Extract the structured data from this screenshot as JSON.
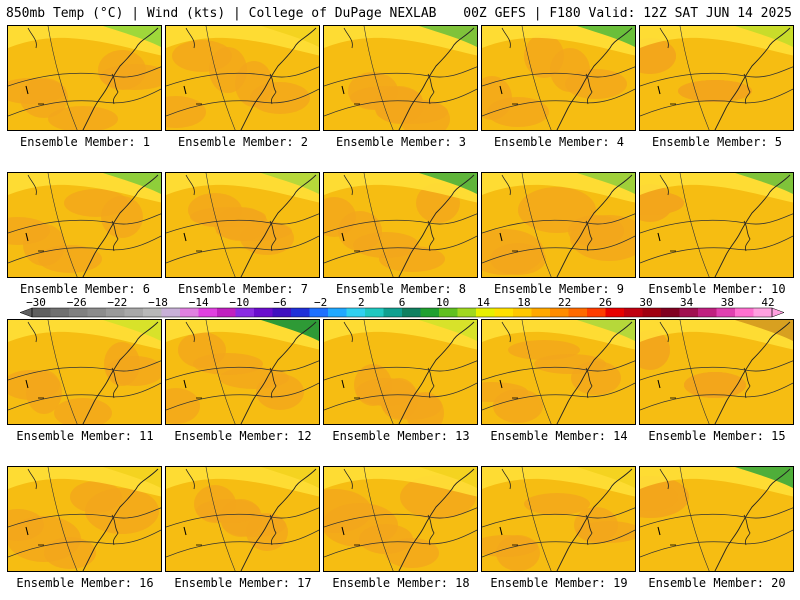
{
  "header": {
    "left": "850mb Temp (°C) | Wind (kts) | College of DuPage NEXLAB",
    "right": "00Z GEFS | F180 Valid: 12Z SAT JUN 14 2025"
  },
  "label_prefix": "Ensemble Member:",
  "members": [
    {
      "id": 1,
      "label": "Ensemble Member: 1",
      "north_tint": "#9fd83a"
    },
    {
      "id": 2,
      "label": "Ensemble Member: 2",
      "north_tint": "#f4d320"
    },
    {
      "id": 3,
      "label": "Ensemble Member: 3",
      "north_tint": "#7fc33a"
    },
    {
      "id": 4,
      "label": "Ensemble Member: 4",
      "north_tint": "#6abf3a"
    },
    {
      "id": 5,
      "label": "Ensemble Member: 5",
      "north_tint": "#c9dc2a"
    },
    {
      "id": 6,
      "label": "Ensemble Member: 6",
      "north_tint": "#8fce3a"
    },
    {
      "id": 7,
      "label": "Ensemble Member: 7",
      "north_tint": "#b6d83a"
    },
    {
      "id": 8,
      "label": "Ensemble Member: 8",
      "north_tint": "#5fb53a"
    },
    {
      "id": 9,
      "label": "Ensemble Member: 9",
      "north_tint": "#9fd03a"
    },
    {
      "id": 10,
      "label": "Ensemble Member: 10",
      "north_tint": "#7fc33a"
    },
    {
      "id": 11,
      "label": "Ensemble Member: 11",
      "north_tint": "#d8e22a"
    },
    {
      "id": 12,
      "label": "Ensemble Member: 12",
      "north_tint": "#2e9a36"
    },
    {
      "id": 13,
      "label": "Ensemble Member: 13",
      "north_tint": "#d8e22a"
    },
    {
      "id": 14,
      "label": "Ensemble Member: 14",
      "north_tint": "#b6d83a"
    },
    {
      "id": 15,
      "label": "Ensemble Member: 15",
      "north_tint": "#d8a020"
    },
    {
      "id": 16,
      "label": "Ensemble Member: 16",
      "north_tint": "#f4d320"
    },
    {
      "id": 17,
      "label": "Ensemble Member: 17",
      "north_tint": "#f4d320"
    },
    {
      "id": 18,
      "label": "Ensemble Member: 18",
      "north_tint": "#f4d320"
    },
    {
      "id": 19,
      "label": "Ensemble Member: 19",
      "north_tint": "#f4d320"
    },
    {
      "id": 20,
      "label": "Ensemble Member: 20",
      "north_tint": "#4fae3a"
    }
  ],
  "colorbar": {
    "labels": [
      "−30",
      "−26",
      "−22",
      "−18",
      "−14",
      "−10",
      "−6",
      "−2",
      "2",
      "6",
      "10",
      "14",
      "18",
      "22",
      "26",
      "30",
      "34",
      "38",
      "42"
    ],
    "colors": [
      "#606060",
      "#707070",
      "#808080",
      "#8c8c8c",
      "#9a9a9a",
      "#a8a8a8",
      "#b8b8b8",
      "#c8b0d8",
      "#e080e0",
      "#e040e0",
      "#c020c0",
      "#8a2be2",
      "#6a0dcd",
      "#4010c0",
      "#2030d8",
      "#1e70ff",
      "#20a8ff",
      "#30d0f0",
      "#20c8c0",
      "#10a090",
      "#108060",
      "#20a030",
      "#60c020",
      "#a0d820",
      "#e8f000",
      "#ffe000",
      "#ffc800",
      "#ffa800",
      "#ff8c00",
      "#ff6a00",
      "#ff3c00",
      "#e80000",
      "#c00010",
      "#a00010",
      "#800020",
      "#a01050",
      "#c02080",
      "#e040b0",
      "#ff70d0",
      "#ffa0e0"
    ]
  }
}
